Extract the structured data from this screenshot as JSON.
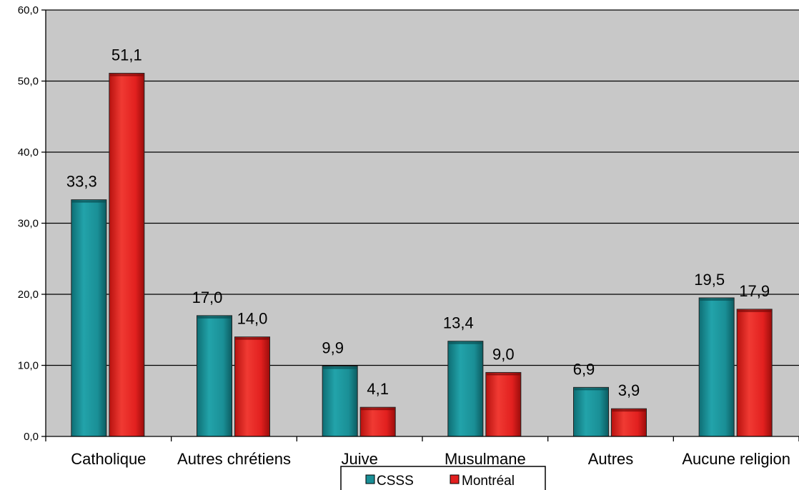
{
  "chart_data": {
    "type": "bar",
    "categories": [
      "Catholique",
      "Autres chrétiens",
      "Juive",
      "Musulmane",
      "Autres",
      "Aucune religion"
    ],
    "series": [
      {
        "name": "CSSS",
        "values": [
          33.3,
          17.0,
          9.9,
          13.4,
          6.9,
          19.5
        ],
        "labels": [
          "33,3",
          "17,0",
          "9,9",
          "13,4",
          "6,9",
          "19,5"
        ],
        "color": "#1a8f96"
      },
      {
        "name": "Montréal",
        "values": [
          51.1,
          14.0,
          4.1,
          9.0,
          3.9,
          17.9
        ],
        "labels": [
          "51,1",
          "14,0",
          "4,1",
          "9,0",
          "3,9",
          "17,9"
        ],
        "color": "#e2201f"
      }
    ],
    "ylim": [
      0,
      60
    ],
    "yticks": [
      0,
      10,
      20,
      30,
      40,
      50,
      60
    ],
    "ytick_labels": [
      "0,0",
      "10,0",
      "20,0",
      "30,0",
      "40,0",
      "50,0",
      "60,0"
    ],
    "grid": true,
    "legend_position": "bottom-center",
    "plot_background": "#c8c8c8",
    "title": "",
    "xlabel": "",
    "ylabel": ""
  }
}
